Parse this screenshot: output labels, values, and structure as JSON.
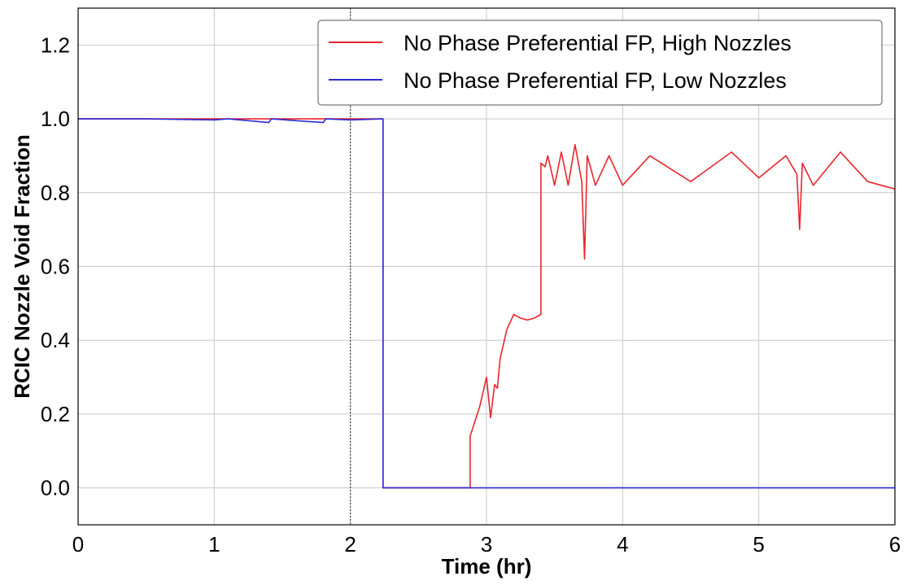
{
  "chart_data": {
    "type": "line",
    "title": "",
    "xlabel": "Time (hr)",
    "ylabel": "RCIC Nozzle Void Fraction",
    "xlim": [
      0,
      6
    ],
    "ylim": [
      -0.1,
      1.3
    ],
    "xticks": [
      "0",
      "1",
      "2",
      "3",
      "4",
      "5",
      "6"
    ],
    "yticks": [
      "0.0",
      "0.2",
      "0.4",
      "0.6",
      "0.8",
      "1.0",
      "1.2"
    ],
    "grid": true,
    "legend_position": "top-right",
    "vertical_reference_line": {
      "x": 2.0,
      "style": "dotted",
      "color": "#404040"
    },
    "series": [
      {
        "name": "No Phase Preferential FP, High Nozzles",
        "color": "#e8262c",
        "x": [
          0,
          1.0,
          1.4,
          1.8,
          2.0,
          2.24,
          2.24,
          2.88,
          2.88,
          2.95,
          3.0,
          3.03,
          3.06,
          3.08,
          3.1,
          3.15,
          3.2,
          3.25,
          3.3,
          3.35,
          3.4,
          3.4,
          3.43,
          3.45,
          3.5,
          3.55,
          3.6,
          3.65,
          3.7,
          3.72,
          3.74,
          3.8,
          3.9,
          4.0,
          4.2,
          4.5,
          4.8,
          5.0,
          5.2,
          5.28,
          5.3,
          5.32,
          5.4,
          5.6,
          5.8,
          6.0
        ],
        "values": [
          1.0,
          1.0,
          1.0,
          1.0,
          1.0,
          1.0,
          0.0,
          0.0,
          0.14,
          0.22,
          0.3,
          0.19,
          0.28,
          0.27,
          0.35,
          0.43,
          0.47,
          0.46,
          0.455,
          0.46,
          0.47,
          0.88,
          0.87,
          0.9,
          0.82,
          0.91,
          0.82,
          0.93,
          0.83,
          0.62,
          0.9,
          0.82,
          0.9,
          0.82,
          0.9,
          0.83,
          0.91,
          0.84,
          0.9,
          0.85,
          0.7,
          0.88,
          0.82,
          0.91,
          0.83,
          0.81
        ]
      },
      {
        "name": "No Phase Preferential FP, Low Nozzles",
        "color": "#2b2bd6",
        "x": [
          0,
          0.5,
          1.0,
          1.1,
          1.4,
          1.42,
          1.6,
          1.8,
          1.82,
          2.0,
          2.24,
          2.24,
          6.0
        ],
        "values": [
          1.0,
          1.0,
          0.997,
          1.0,
          0.99,
          1.0,
          0.995,
          0.99,
          1.0,
          0.997,
          1.0,
          0.0,
          0.0
        ]
      }
    ]
  }
}
